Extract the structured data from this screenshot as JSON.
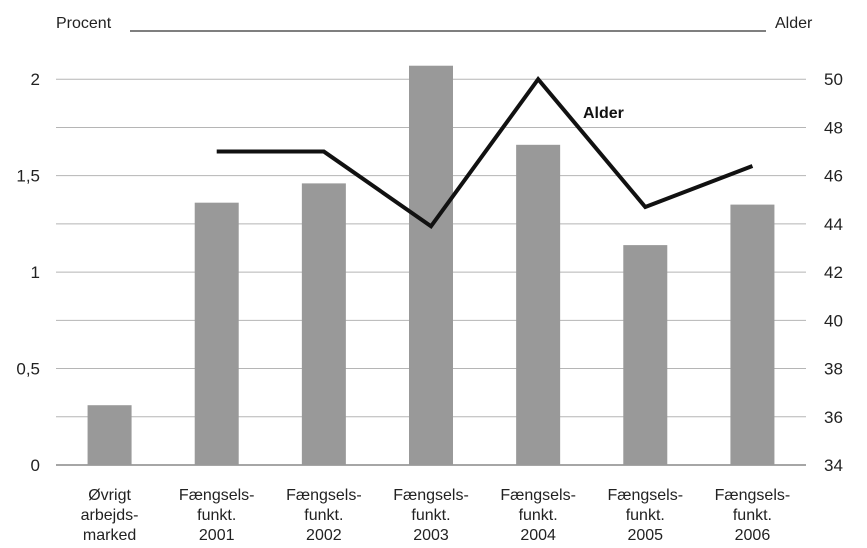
{
  "chart_data": {
    "type": "bar",
    "y_left_label": "Procent",
    "y_right_label": "Alder",
    "categories": [
      [
        "Øvrigt",
        "arbejds-",
        "marked"
      ],
      [
        "Fængsels-",
        "funkt.",
        "2001"
      ],
      [
        "Fængsels-",
        "funkt.",
        "2002"
      ],
      [
        "Fængsels-",
        "funkt.",
        "2003"
      ],
      [
        "Fængsels-",
        "funkt.",
        "2004"
      ],
      [
        "Fængsels-",
        "funkt.",
        "2005"
      ],
      [
        "Fængsels-",
        "funkt.",
        "2006"
      ]
    ],
    "y_left_ticks": [
      "0",
      "0,5",
      "1",
      "1,5",
      "2"
    ],
    "y_left_range": [
      0,
      2.25
    ],
    "y_right_ticks": [
      "34",
      "36",
      "38",
      "40",
      "42",
      "44",
      "46",
      "48",
      "50"
    ],
    "y_right_range": [
      34,
      52
    ],
    "bar_series": {
      "values": [
        0.31,
        1.36,
        1.46,
        2.07,
        1.66,
        1.14,
        1.35
      ],
      "color": "#999999"
    },
    "line_series": {
      "name": "Alder",
      "values": [
        null,
        47.0,
        47.0,
        43.9,
        50.0,
        44.7,
        46.4
      ],
      "color": "#111111"
    },
    "grid": true
  }
}
